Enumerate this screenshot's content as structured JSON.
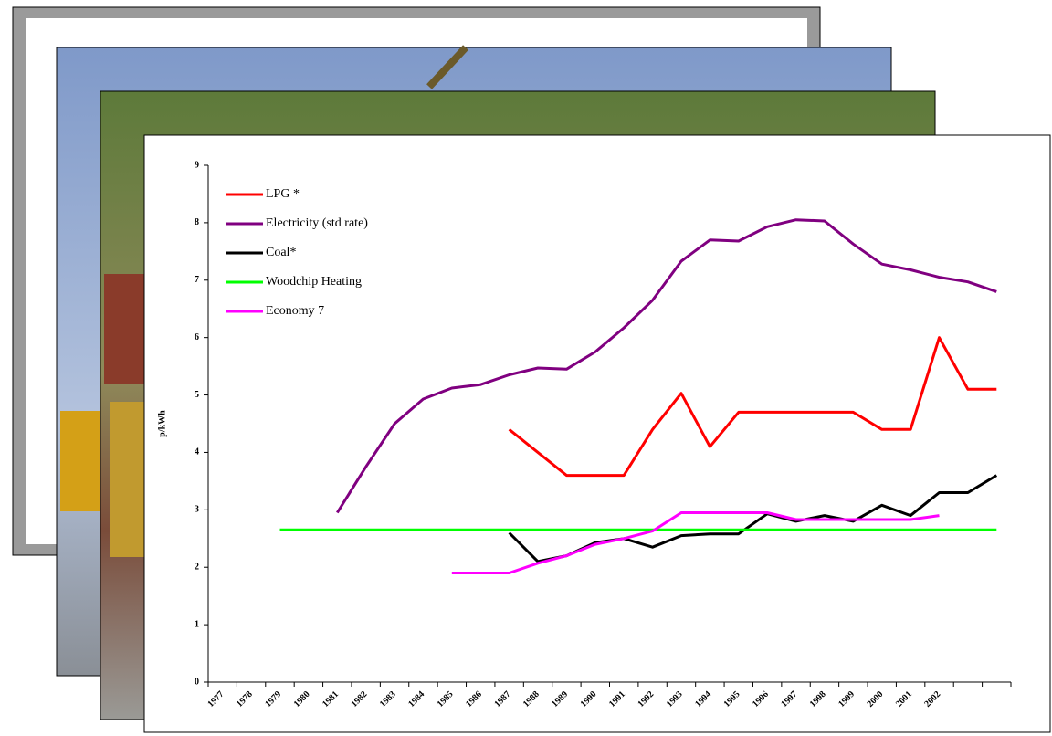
{
  "chart_data": {
    "type": "line",
    "y_label": "p/kWh",
    "categories": [
      "1977",
      "1978",
      "1979",
      "1980",
      "1981",
      "1982",
      "1983",
      "1984",
      "1985",
      "1986",
      "1987",
      "1988",
      "1989",
      "1990",
      "1991",
      "1992",
      "1993",
      "1994",
      "1995",
      "1996",
      "1997",
      "1998",
      "1999",
      "2000",
      "2001",
      "2002",
      null,
      null
    ],
    "series": [
      {
        "name": "LPG *",
        "color": "#ff0000",
        "values": [
          null,
          null,
          null,
          null,
          null,
          null,
          null,
          null,
          null,
          null,
          4.4,
          4.0,
          3.6,
          3.6,
          3.6,
          4.4,
          5.03,
          4.1,
          4.7,
          4.7,
          4.7,
          4.7,
          4.7,
          4.4,
          4.4,
          6.0,
          5.1,
          5.1
        ]
      },
      {
        "name": "Electricity (std rate)",
        "color": "#800080",
        "values": [
          null,
          null,
          null,
          null,
          2.95,
          3.75,
          4.5,
          4.93,
          5.12,
          5.18,
          5.35,
          5.47,
          5.45,
          5.75,
          6.17,
          6.65,
          7.33,
          7.7,
          7.68,
          7.93,
          8.05,
          8.03,
          7.63,
          7.28,
          7.18,
          7.05,
          6.97,
          6.8
        ]
      },
      {
        "name": "Coal*",
        "color": "#000000",
        "values": [
          null,
          null,
          null,
          null,
          null,
          null,
          null,
          null,
          null,
          null,
          2.6,
          2.1,
          2.2,
          2.43,
          2.5,
          2.35,
          2.55,
          2.58,
          2.58,
          2.93,
          2.8,
          2.9,
          2.8,
          3.08,
          2.9,
          3.3,
          3.3,
          3.6
        ]
      },
      {
        "name": "Woodchip Heating",
        "color": "#00ff00",
        "values": [
          null,
          null,
          2.65,
          2.65,
          2.65,
          2.65,
          2.65,
          2.65,
          2.65,
          2.65,
          2.65,
          2.65,
          2.65,
          2.65,
          2.65,
          2.65,
          2.65,
          2.65,
          2.65,
          2.65,
          2.65,
          2.65,
          2.65,
          2.65,
          2.65,
          2.65,
          2.65,
          2.65
        ]
      },
      {
        "name": "Economy 7",
        "color": "#ff00ff",
        "values": [
          null,
          null,
          null,
          null,
          null,
          null,
          null,
          null,
          1.9,
          1.9,
          1.9,
          2.07,
          2.2,
          2.4,
          2.5,
          2.63,
          2.95,
          2.95,
          2.95,
          2.95,
          2.83,
          2.83,
          2.83,
          2.83,
          2.83,
          2.9,
          null,
          null
        ]
      }
    ],
    "ylim": [
      0,
      9
    ],
    "yticks": [
      0,
      1,
      2,
      3,
      4,
      5,
      6,
      7,
      8,
      9
    ],
    "legend": "upper left"
  }
}
